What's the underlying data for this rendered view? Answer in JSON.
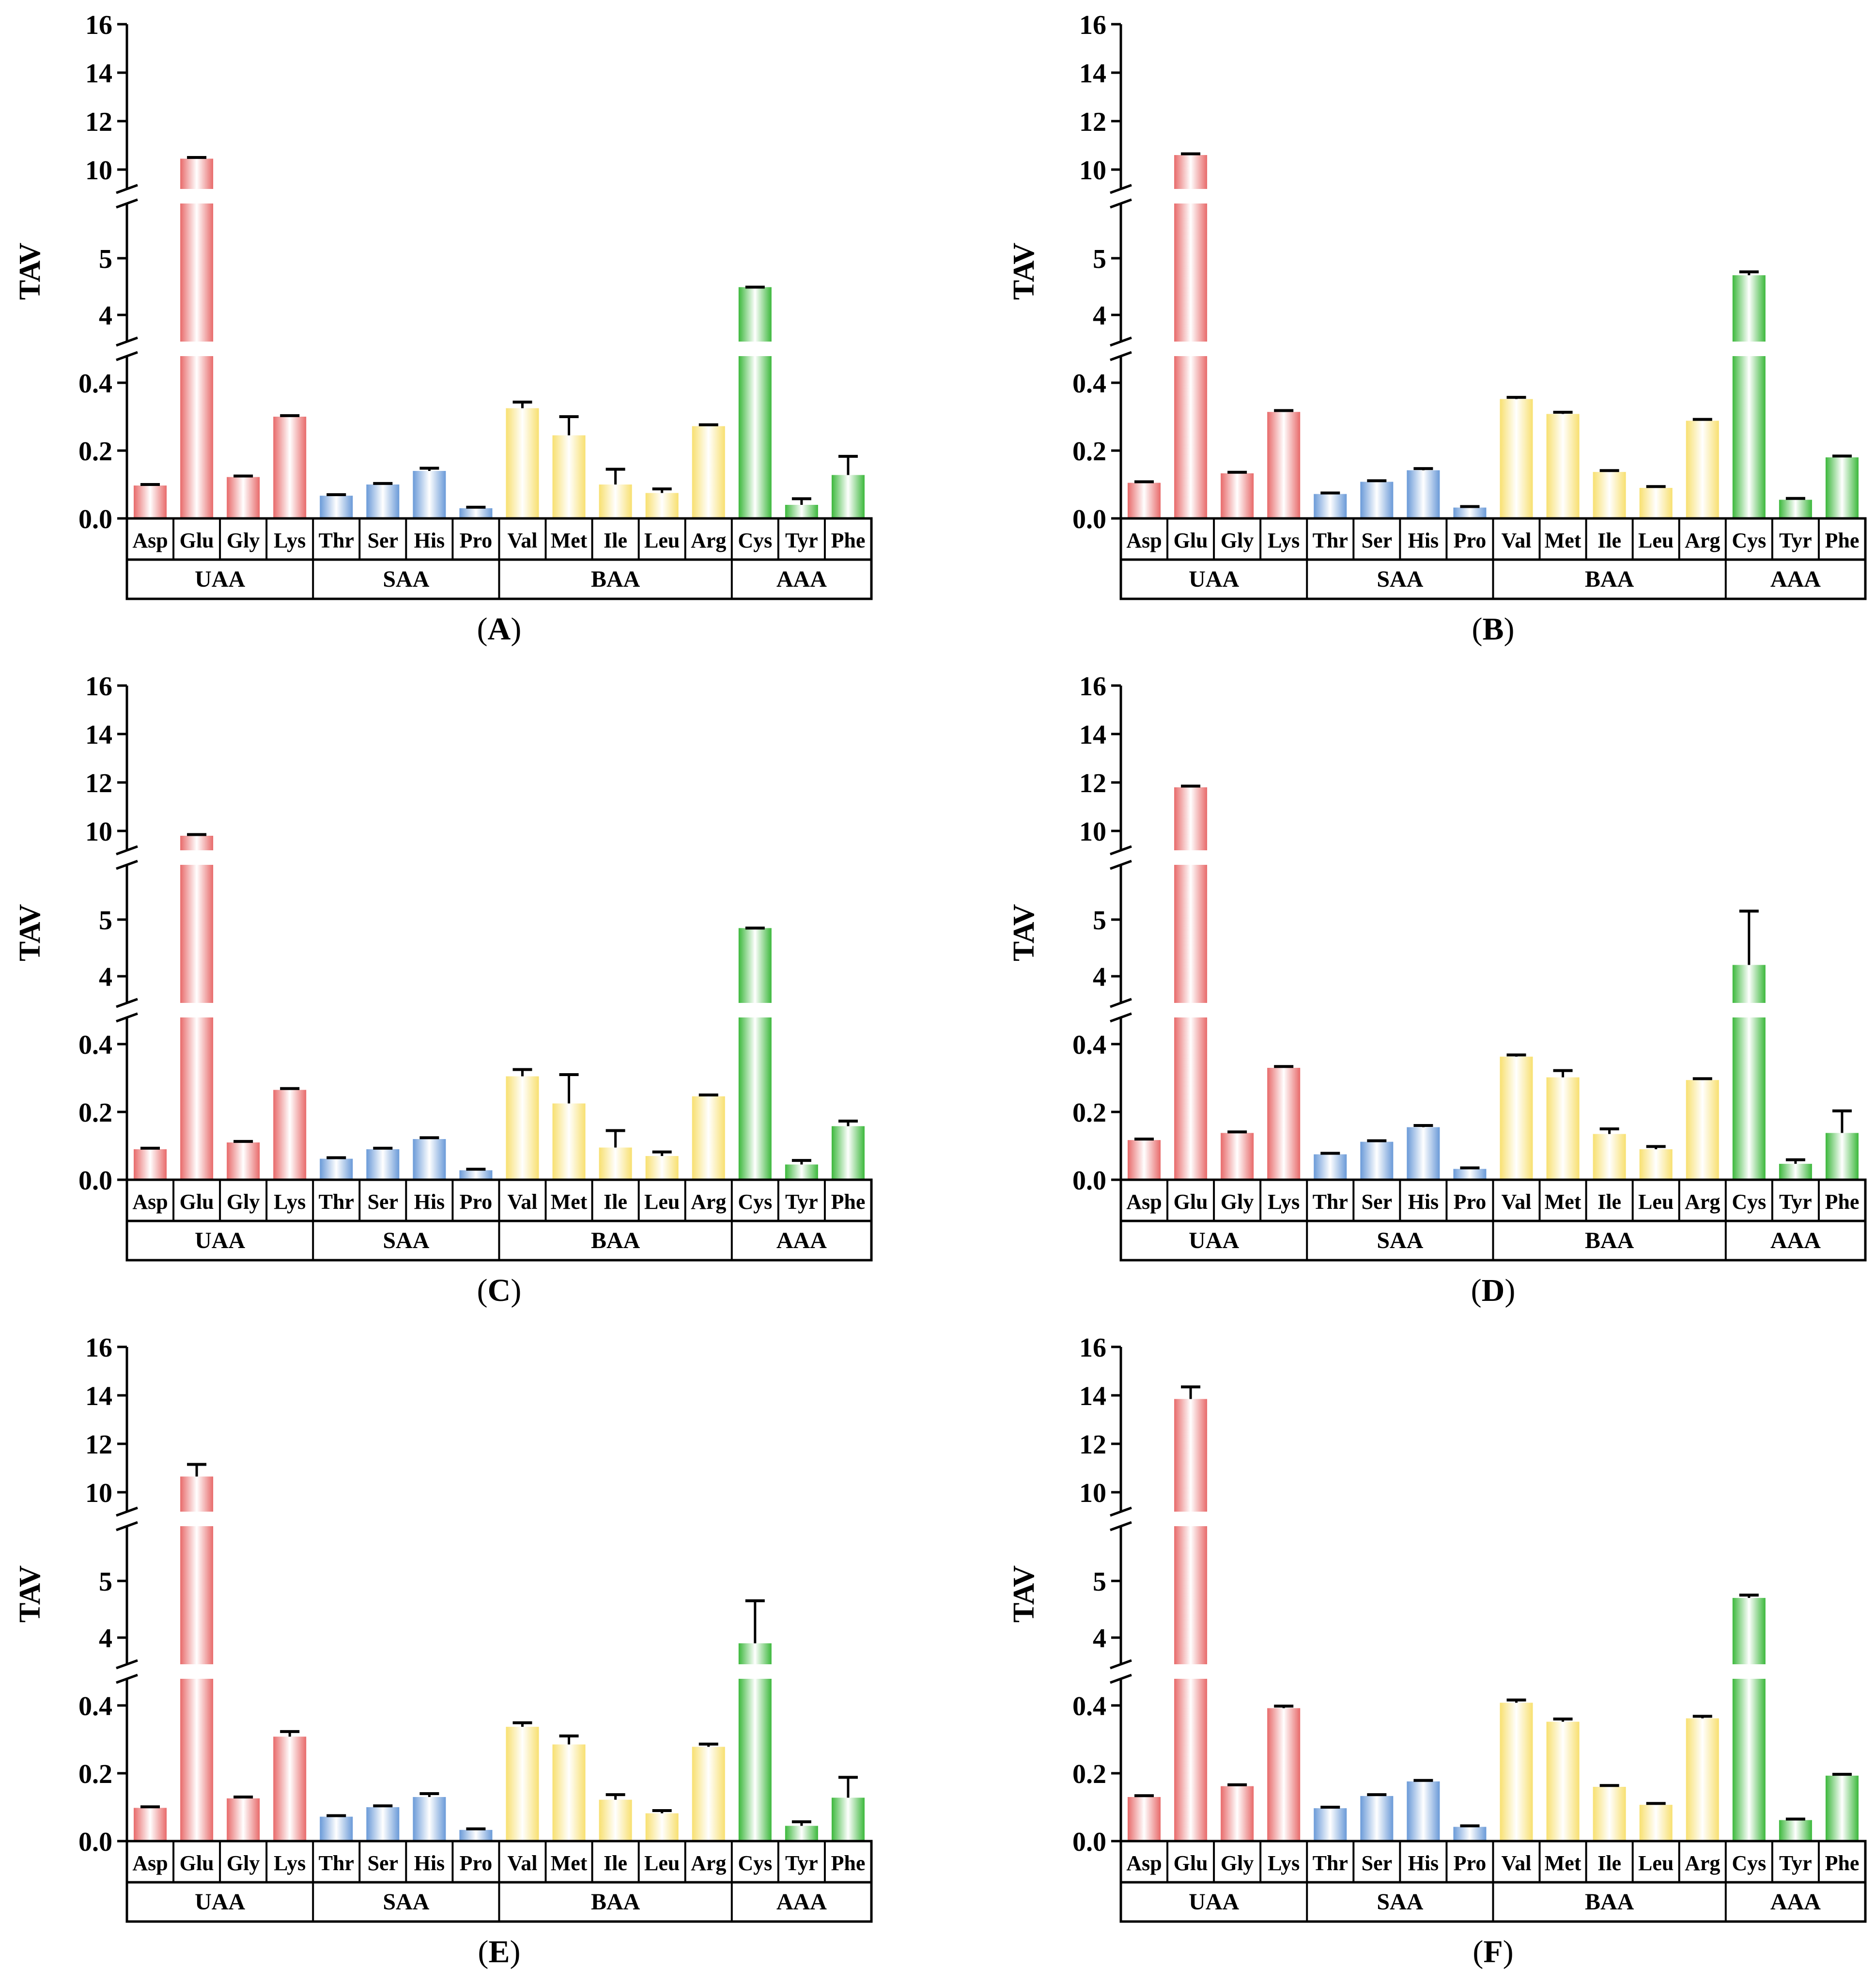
{
  "figure": {
    "y_axis_label": "TAV",
    "y_ticks_upper": [
      "10",
      "12",
      "14",
      "16"
    ],
    "y_ticks_middle": [
      "4",
      "5"
    ],
    "y_ticks_lower": [
      "0.0",
      "0.2",
      "0.4"
    ],
    "axis_break": {
      "lower_segment": [
        0,
        0.5
      ],
      "middle_segment": [
        3.5,
        5.8
      ],
      "upper_segment": [
        8.7,
        16
      ]
    },
    "colors": {
      "UAA": "#e86a6a",
      "SAA": "#6a9ad8",
      "BAA": "#f8e070",
      "AAA": "#3cb83c"
    }
  },
  "chart_data": [
    {
      "type": "bar",
      "panel_label": "A",
      "ylabel": "TAV",
      "categories": [
        "Asp",
        "Glu",
        "Gly",
        "Lys",
        "Thr",
        "Ser",
        "His",
        "Pro",
        "Val",
        "Met",
        "Ile",
        "Leu",
        "Arg",
        "Cys",
        "Tyr",
        "Phe"
      ],
      "groups": [
        {
          "name": "UAA",
          "span": 4
        },
        {
          "name": "SAA",
          "span": 4
        },
        {
          "name": "BAA",
          "span": 5
        },
        {
          "name": "AAA",
          "span": 3
        }
      ],
      "values": [
        0.097,
        10.45,
        0.122,
        0.3,
        0.067,
        0.1,
        0.14,
        0.03,
        0.325,
        0.245,
        0.1,
        0.075,
        0.272,
        4.49,
        0.04,
        0.128
      ],
      "errors": [
        0.003,
        0.05,
        0.003,
        0.003,
        0.003,
        0.003,
        0.008,
        0.003,
        0.018,
        0.055,
        0.045,
        0.012,
        0.004,
        0.0,
        0.018,
        0.055
      ]
    },
    {
      "type": "bar",
      "panel_label": "B",
      "ylabel": "TAV",
      "categories": [
        "Asp",
        "Glu",
        "Gly",
        "Lys",
        "Thr",
        "Ser",
        "His",
        "Pro",
        "Val",
        "Met",
        "Ile",
        "Leu",
        "Arg",
        "Cys",
        "Tyr",
        "Phe"
      ],
      "groups": [
        {
          "name": "UAA",
          "span": 4
        },
        {
          "name": "SAA",
          "span": 4
        },
        {
          "name": "BAA",
          "span": 5
        },
        {
          "name": "AAA",
          "span": 3
        }
      ],
      "values": [
        0.105,
        10.6,
        0.133,
        0.314,
        0.072,
        0.108,
        0.142,
        0.032,
        0.352,
        0.308,
        0.137,
        0.09,
        0.288,
        4.7,
        0.055,
        0.18
      ],
      "errors": [
        0.003,
        0.05,
        0.003,
        0.004,
        0.003,
        0.003,
        0.005,
        0.003,
        0.005,
        0.005,
        0.004,
        0.004,
        0.004,
        0.06,
        0.004,
        0.004
      ]
    },
    {
      "type": "bar",
      "panel_label": "C",
      "ylabel": "TAV",
      "categories": [
        "Asp",
        "Glu",
        "Gly",
        "Lys",
        "Thr",
        "Ser",
        "His",
        "Pro",
        "Val",
        "Met",
        "Ile",
        "Leu",
        "Arg",
        "Cys",
        "Tyr",
        "Phe"
      ],
      "groups": [
        {
          "name": "UAA",
          "span": 4
        },
        {
          "name": "SAA",
          "span": 4
        },
        {
          "name": "BAA",
          "span": 5
        },
        {
          "name": "AAA",
          "span": 3
        }
      ],
      "values": [
        0.09,
        9.8,
        0.11,
        0.265,
        0.062,
        0.09,
        0.12,
        0.028,
        0.305,
        0.225,
        0.095,
        0.07,
        0.246,
        4.85,
        0.045,
        0.158
      ],
      "errors": [
        0.003,
        0.05,
        0.003,
        0.004,
        0.003,
        0.003,
        0.004,
        0.003,
        0.02,
        0.085,
        0.05,
        0.012,
        0.004,
        0.0,
        0.012,
        0.015
      ]
    },
    {
      "type": "bar",
      "panel_label": "D",
      "ylabel": "TAV",
      "categories": [
        "Asp",
        "Glu",
        "Gly",
        "Lys",
        "Thr",
        "Ser",
        "His",
        "Pro",
        "Val",
        "Met",
        "Ile",
        "Leu",
        "Arg",
        "Cys",
        "Tyr",
        "Phe"
      ],
      "groups": [
        {
          "name": "UAA",
          "span": 4
        },
        {
          "name": "SAA",
          "span": 4
        },
        {
          "name": "BAA",
          "span": 5
        },
        {
          "name": "AAA",
          "span": 3
        }
      ],
      "values": [
        0.117,
        11.8,
        0.138,
        0.33,
        0.075,
        0.112,
        0.155,
        0.032,
        0.363,
        0.302,
        0.135,
        0.09,
        0.294,
        4.2,
        0.047,
        0.138
      ],
      "errors": [
        0.003,
        0.05,
        0.003,
        0.004,
        0.003,
        0.003,
        0.005,
        0.003,
        0.005,
        0.02,
        0.015,
        0.008,
        0.004,
        0.95,
        0.012,
        0.065
      ]
    },
    {
      "type": "bar",
      "panel_label": "E",
      "ylabel": "TAV",
      "categories": [
        "Asp",
        "Glu",
        "Gly",
        "Lys",
        "Thr",
        "Ser",
        "His",
        "Pro",
        "Val",
        "Met",
        "Ile",
        "Leu",
        "Arg",
        "Cys",
        "Tyr",
        "Phe"
      ],
      "groups": [
        {
          "name": "UAA",
          "span": 4
        },
        {
          "name": "SAA",
          "span": 4
        },
        {
          "name": "BAA",
          "span": 5
        },
        {
          "name": "AAA",
          "span": 3
        }
      ],
      "values": [
        0.098,
        10.65,
        0.126,
        0.308,
        0.072,
        0.1,
        0.13,
        0.033,
        0.337,
        0.285,
        0.122,
        0.082,
        0.278,
        3.9,
        0.045,
        0.128
      ],
      "errors": [
        0.003,
        0.5,
        0.004,
        0.015,
        0.003,
        0.004,
        0.01,
        0.003,
        0.012,
        0.025,
        0.015,
        0.008,
        0.008,
        0.75,
        0.012,
        0.06
      ]
    },
    {
      "type": "bar",
      "panel_label": "F",
      "ylabel": "TAV",
      "categories": [
        "Asp",
        "Glu",
        "Gly",
        "Lys",
        "Thr",
        "Ser",
        "His",
        "Pro",
        "Val",
        "Met",
        "Ile",
        "Leu",
        "Arg",
        "Cys",
        "Tyr",
        "Phe"
      ],
      "groups": [
        {
          "name": "UAA",
          "span": 4
        },
        {
          "name": "SAA",
          "span": 4
        },
        {
          "name": "BAA",
          "span": 5
        },
        {
          "name": "AAA",
          "span": 3
        }
      ],
      "values": [
        0.13,
        13.85,
        0.162,
        0.392,
        0.097,
        0.133,
        0.176,
        0.042,
        0.408,
        0.352,
        0.16,
        0.107,
        0.362,
        4.7,
        0.062,
        0.193
      ],
      "errors": [
        0.004,
        0.5,
        0.004,
        0.006,
        0.003,
        0.004,
        0.003,
        0.003,
        0.008,
        0.008,
        0.004,
        0.004,
        0.006,
        0.05,
        0.003,
        0.004
      ]
    }
  ]
}
